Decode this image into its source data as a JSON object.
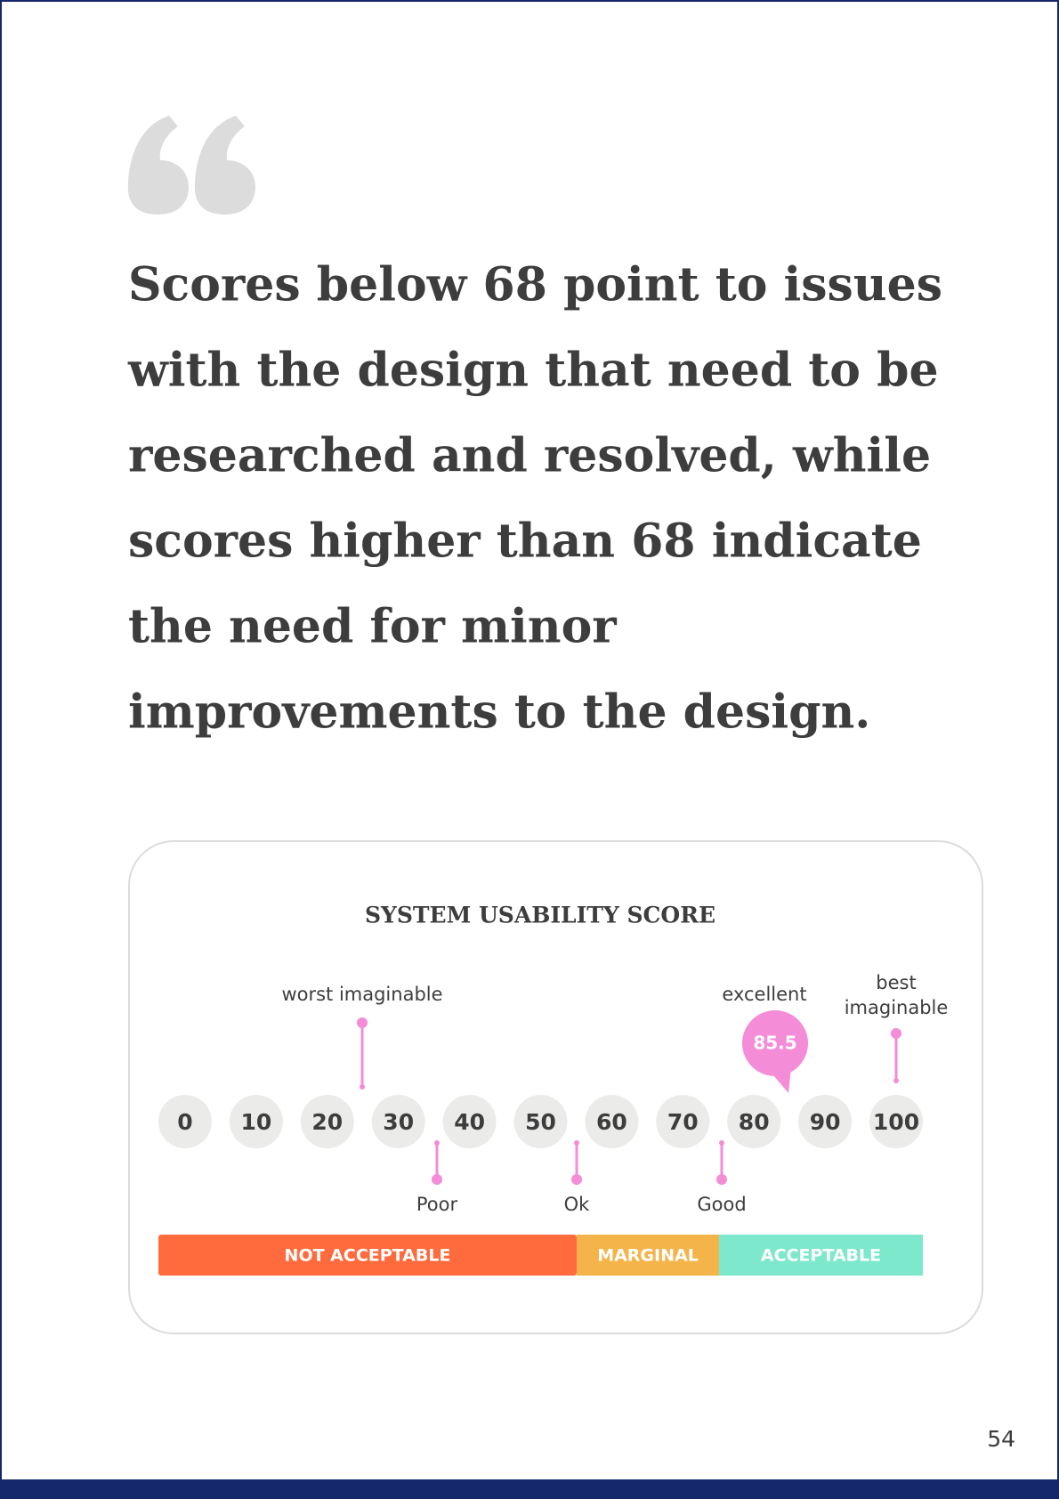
{
  "quote": {
    "lines": [
      "Scores below 68 point to issues",
      "with the design that need to be",
      "researched and resolved, while",
      "scores higher than 68 indicate",
      "the need for minor",
      "improvements to the design."
    ]
  },
  "scale": {
    "title": "SYSTEM USABILITY SCORE",
    "ticks": [
      "0",
      "10",
      "20",
      "30",
      "40",
      "50",
      "60",
      "70",
      "80",
      "90",
      "100"
    ],
    "above": {
      "worst": "worst imaginable",
      "excellent": "excellent",
      "best": [
        "best",
        "imaginable"
      ]
    },
    "below": {
      "poor": "Poor",
      "ok": "Ok",
      "good": "Good"
    },
    "score": "85.5",
    "bands": [
      "NOT ACCEPTABLE",
      "MARGINAL",
      "ACCEPTABLE"
    ]
  },
  "page_number": "54"
}
